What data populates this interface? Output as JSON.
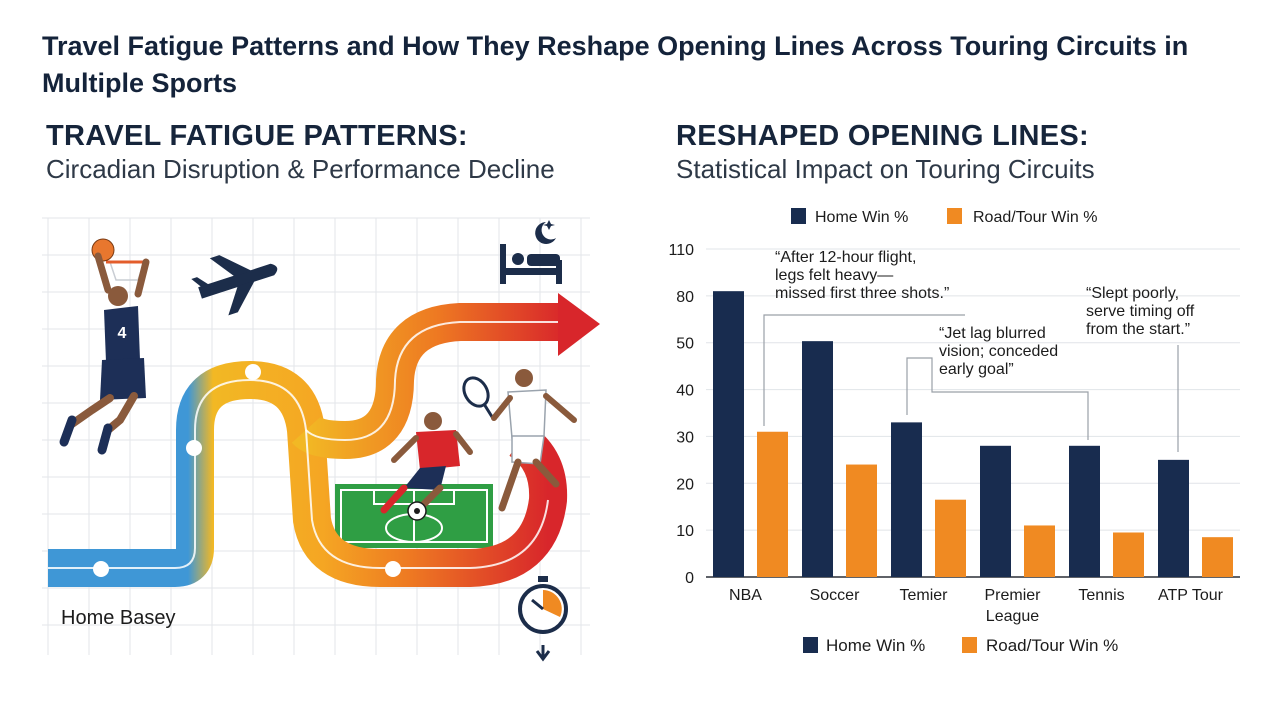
{
  "title": "Travel Fatigue Patterns and How They Reshape Opening Lines Across Touring Circuits in Multiple Sports",
  "left_panel": {
    "heading": "TRAVEL FATIGUE PATTERNS:",
    "subheading": "Circadian Disruption & Performance Decline",
    "home_label": "Home Basey",
    "jersey_number": "4",
    "icons": [
      "airplane-icon",
      "bed-icon",
      "moon-icon",
      "stopwatch-icon",
      "basketball-icon",
      "soccer-ball-icon",
      "tennis-racket-icon"
    ]
  },
  "right_panel": {
    "heading": "RESHAPED OPENING LINES:",
    "subheading": "Statistical Impact on Touring Circuits"
  },
  "colors": {
    "home": "#182c4f",
    "road": "#f08a22",
    "path_blue": "#3f97d6",
    "path_yellow": "#f2b824",
    "path_orange": "#ee7a22",
    "path_red": "#d8262b"
  },
  "chart_data": {
    "type": "bar",
    "categories": [
      "NBA",
      "Soccer",
      "Temier",
      "Premier League",
      "Tennis",
      "ATP Tour"
    ],
    "category_lines": [
      [
        "NBA"
      ],
      [
        "Soccer"
      ],
      [
        "Temier"
      ],
      [
        "Premier",
        "League"
      ],
      [
        "Tennis"
      ],
      [
        "ATP Tour"
      ]
    ],
    "series": [
      {
        "name": "Home Win %",
        "values": [
          83,
          51,
          33,
          28,
          28,
          25
        ]
      },
      {
        "name": "Road/Tour Win %",
        "values": [
          31,
          24,
          16.5,
          11,
          9.5,
          8.5
        ]
      }
    ],
    "yticks": [
      "0",
      "10",
      "20",
      "30",
      "40",
      "50",
      "80",
      "110"
    ],
    "ylim": [
      0,
      110
    ],
    "grid": true,
    "legend_placement": [
      "top",
      "bottom"
    ],
    "annotations": [
      {
        "lines": [
          "“After 12-hour flight,",
          "legs felt heavy—",
          "missed first three shots.”"
        ],
        "category": "NBA"
      },
      {
        "lines": [
          "“Jet lag blurred",
          "vision; conceded",
          "early goal”"
        ],
        "category": "Temier"
      },
      {
        "lines": [
          "“Slept poorly,",
          "serve timing off",
          "from the start.”"
        ],
        "category": "ATP Tour"
      }
    ]
  }
}
